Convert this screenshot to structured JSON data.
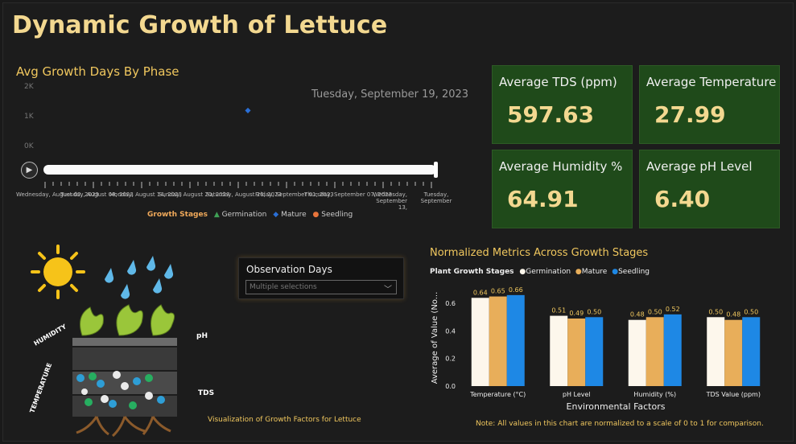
{
  "title": "Dynamic Growth of Lettuce",
  "scatter": {
    "title": "Avg Growth Days By Phase",
    "date_label": "Tuesday, September 19, 2023",
    "y_ticks": [
      "2K",
      "1K",
      "0K"
    ],
    "point_value": 1300,
    "point_series": "Mature",
    "play_icon": "play-icon",
    "x_tick_labels": [
      "Wednesday, August 02, 2023",
      "Tuesday, August 08, 2023",
      "Monday, August 14, 2023",
      "Sunday, August 20, 2023",
      "Saturday, August 26, 2023",
      "Friday, September 01, 2023",
      "Thursday, September 07, 2023",
      "Wednesday, September 13,",
      "Tuesday, September"
    ],
    "legend": {
      "title": "Growth Stages",
      "items": [
        {
          "label": "Germination",
          "color": "#3fa055",
          "shape": "triangle"
        },
        {
          "label": "Mature",
          "color": "#2a6fd6",
          "shape": "diamond"
        },
        {
          "label": "Seedling",
          "color": "#e8743b",
          "shape": "circle"
        }
      ]
    }
  },
  "kpis": [
    {
      "label": "Average TDS (ppm)",
      "value": "597.63"
    },
    {
      "label": "Average Temperature",
      "value": "27.99"
    },
    {
      "label": "Average Humidity %",
      "value": "64.91"
    },
    {
      "label": "Average pH Level",
      "value": "6.40"
    }
  ],
  "illustration": {
    "caption": "Visualization of Growth Factors for Lettuce",
    "labels": {
      "humidity": "HUMIDITY",
      "temperature": "TEMPERATURE",
      "ph": "pH",
      "tds": "TDS"
    }
  },
  "slicer": {
    "title": "Observation Days",
    "value": "Multiple selections",
    "chevron": "chevron-down-icon"
  },
  "chart_data": {
    "type": "bar",
    "title": "Normalized Metrics Across Growth Stages",
    "legend_title": "Plant Growth Stages",
    "categories": [
      "Temperature (°C)",
      "pH Level",
      "Humidity (%)",
      "TDS Value (ppm)"
    ],
    "series": [
      {
        "name": "Germination",
        "color": "#fdf7ec",
        "values": [
          0.64,
          0.51,
          0.48,
          0.5
        ]
      },
      {
        "name": "Mature",
        "color": "#e8ae5a",
        "values": [
          0.65,
          0.49,
          0.5,
          0.48
        ]
      },
      {
        "name": "Seedling",
        "color": "#1e88e5",
        "values": [
          0.66,
          0.5,
          0.52,
          0.5
        ]
      }
    ],
    "xlabel": "Environmental Factors",
    "ylabel": "Average of Value (No...",
    "yticks": [
      "0.0",
      "0.2",
      "0.4",
      "0.6"
    ],
    "ylim": [
      0,
      0.7
    ],
    "note": "Note: All values in this chart are normalized to a scale of 0 to 1 for comparison."
  }
}
